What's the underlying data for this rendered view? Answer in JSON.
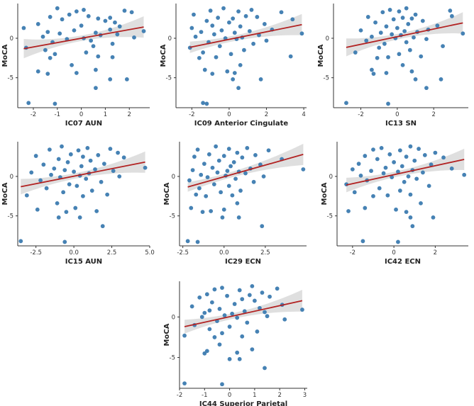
{
  "chart_data": [
    {
      "type": "scatter",
      "title": "",
      "xlabel": "IC07 AUN",
      "ylabel": "MoCA",
      "xticks": [
        -2,
        -1,
        0,
        1,
        2
      ],
      "xticklabels": [
        "-2",
        "-1",
        "0",
        "1",
        "2"
      ],
      "yticks": [
        0,
        -5
      ],
      "yticklabels": [
        "0",
        "-5"
      ],
      "xlim": [
        -2.65,
        2.85
      ],
      "ylim": [
        -8.8,
        4.4
      ],
      "fit": {
        "slope": 0.55,
        "intercept": 0.0
      },
      "x": [
        -1.0,
        0.1,
        1.8,
        -0.2,
        2.1,
        -0.5,
        0.3,
        -1.3,
        1.2,
        0.7,
        -0.8,
        1.0,
        1.4,
        -1.8,
        0.0,
        1.6,
        -2.4,
        1.2,
        -0.3,
        2.6,
        -1.4,
        0.6,
        -0.9,
        1.5,
        0.8,
        -1.6,
        2.2,
        0.1,
        -0.6,
        0.4,
        -1.2,
        1.3,
        0.5,
        -2.3,
        -1.5,
        0.2,
        -1.1,
        0.7,
        1.3,
        -1.3,
        -0.4,
        0.6,
        -1.8,
        -0.2,
        -1.4,
        1.2,
        1.9,
        0.6,
        -2.2,
        -1.1
      ]
    },
    {
      "type": "scatter",
      "title": "",
      "xlabel": "IC09 Anterior Cingulate",
      "ylabel": "MoCA",
      "xticks": [
        -2,
        0,
        2,
        4
      ],
      "xticklabels": [
        "-2",
        "0",
        "2",
        "4"
      ],
      "yticks": [
        0,
        -5
      ],
      "yticklabels": [
        "0",
        "-5"
      ],
      "xlim": [
        -2.85,
        4.15
      ],
      "ylim": [
        -8.8,
        4.4
      ],
      "fit": {
        "slope": 0.48,
        "intercept": -0.14
      },
      "x": [
        -0.3,
        1.2,
        -1.0,
        0.5,
        2.8,
        -1.9,
        0.9,
        1.5,
        -0.6,
        0.2,
        3.4,
        -1.2,
        0.0,
        1.9,
        -0.9,
        0.6,
        -2.0,
        2.3,
        -0.4,
        1.1,
        -1.5,
        0.3,
        3.9,
        -0.8,
        1.6,
        -1.8,
        0.7,
        -0.2,
        0.4,
        2.0,
        -1.1,
        1.3,
        -0.5,
        -2.1,
        0.8,
        -1.4,
        0.1,
        3.3,
        -0.7,
        -1.6,
        0.6,
        -1.3,
        -0.1,
        0.3,
        -0.9,
        1.7,
        0.2,
        0.5,
        -1.4,
        -1.2
      ]
    },
    {
      "type": "scatter",
      "title": "",
      "xlabel": "IC13 SN",
      "ylabel": "MoCA",
      "xticks": [
        -2,
        0,
        2
      ],
      "xticklabels": [
        "-2",
        "0",
        "2"
      ],
      "yticks": [
        0,
        -5
      ],
      "yticklabels": [
        "0",
        "-5"
      ],
      "xlim": [
        -3.5,
        3.9
      ],
      "ylim": [
        -8.8,
        4.4
      ],
      "fit": {
        "slope": 0.485,
        "intercept": 0.2
      },
      "x": [
        0.5,
        -0.4,
        2.9,
        0.1,
        -0.8,
        1.0,
        3.0,
        -1.6,
        0.3,
        0.8,
        -0.2,
        1.4,
        -1.2,
        0.6,
        2.2,
        -0.6,
        0.0,
        1.7,
        -2.0,
        0.4,
        1.1,
        -0.9,
        3.6,
        -0.3,
        0.2,
        -1.4,
        0.9,
        -0.1,
        1.6,
        -1.7,
        0.5,
        -0.7,
        2.5,
        -1.0,
        0.7,
        -2.3,
        0.1,
        1.3,
        -0.5,
        -1.1,
        0.3,
        -1.4,
        0.8,
        -0.6,
        -1.3,
        1.0,
        2.4,
        1.6,
        -2.8,
        -0.5
      ]
    },
    {
      "type": "scatter",
      "title": "",
      "xlabel": "IC15 AUN",
      "ylabel": "MoCA",
      "xticks": [
        -2.5,
        0,
        2.5,
        5
      ],
      "xticklabels": [
        "-2.5",
        "0.0",
        "2.5",
        "5.0"
      ],
      "yticks": [
        0,
        -5
      ],
      "yticklabels": [
        "0",
        "-5"
      ],
      "xlim": [
        -3.7,
        5.0
      ],
      "ylim": [
        -8.8,
        4.4
      ],
      "fit": {
        "slope": 0.38,
        "intercept": 0.03
      },
      "x": [
        -0.8,
        0.9,
        2.4,
        -1.6,
        0.3,
        2.9,
        -0.2,
        1.6,
        -2.5,
        0.6,
        3.3,
        -1.0,
        1.1,
        -0.4,
        2.0,
        -2.0,
        0.5,
        4.7,
        -1.3,
        1.4,
        -0.6,
        2.6,
        0.0,
        -2.8,
        1.0,
        -1.5,
        0.4,
        3.0,
        -0.9,
        0.8,
        -2.2,
        1.8,
        -0.3,
        0.2,
        -1.8,
        1.2,
        -0.7,
        2.2,
        -3.1,
        0.6,
        -1.1,
        0.1,
        -2.4,
        1.5,
        -0.5,
        0.4,
        -1.0,
        1.9,
        -3.5,
        -0.6
      ]
    },
    {
      "type": "scatter",
      "title": "",
      "xlabel": "IC29 ECN",
      "ylabel": "MoCA",
      "xticks": [
        -2.5,
        0,
        2.5
      ],
      "xticklabels": [
        "-2.5",
        "0.0",
        "2.5"
      ],
      "yticks": [
        0,
        -5
      ],
      "yticklabels": [
        "0",
        "-5"
      ],
      "xlim": [
        -2.7,
        5.0
      ],
      "ylim": [
        -8.8,
        4.4
      ],
      "fit": {
        "slope": 0.59,
        "intercept": -0.04
      },
      "x": [
        -0.5,
        1.4,
        0.3,
        -1.6,
        2.7,
        0.8,
        -0.9,
        1.9,
        0.0,
        -1.8,
        1.1,
        3.5,
        -0.3,
        0.6,
        -1.2,
        2.2,
        0.4,
        -0.7,
        1.6,
        4.8,
        -1.9,
        0.2,
        0.9,
        -0.4,
        1.3,
        -1.4,
        0.1,
        2.4,
        -1.0,
        0.7,
        -2.1,
        1.8,
        -0.6,
        0.3,
        -1.5,
        1.0,
        -0.2,
        -1.7,
        0.5,
        -1.1,
        0.8,
        -2.0,
        0.0,
        -0.8,
        -1.3,
        0.9,
        -0.1,
        2.3,
        -2.2,
        -1.6
      ]
    },
    {
      "type": "scatter",
      "title": "",
      "xlabel": "IC42 ECN",
      "ylabel": "MoCA",
      "xticks": [
        -2,
        0,
        2
      ],
      "xticklabels": [
        "-2",
        "0",
        "2"
      ],
      "yticks": [
        0,
        -5
      ],
      "yticklabels": [
        "0",
        "-5"
      ],
      "xlim": [
        -2.75,
        3.6
      ],
      "ylim": [
        -8.8,
        4.4
      ],
      "fit": {
        "slope": 0.57,
        "intercept": 0.22
      },
      "x": [
        0.8,
        -0.6,
        1.2,
        -1.0,
        0.3,
        2.0,
        -0.2,
        1.5,
        -1.4,
        0.6,
        2.4,
        -0.8,
        1.0,
        0.0,
        -1.7,
        1.8,
        0.4,
        -0.4,
        2.8,
        -2.0,
        0.9,
        -1.1,
        0.2,
        1.4,
        -0.5,
        3.4,
        -1.6,
        0.7,
        -0.1,
        1.1,
        -1.3,
        0.5,
        -2.3,
        1.7,
        -0.7,
        0.3,
        -1.9,
        0.8,
        -0.3,
        -1.0,
        1.3,
        -1.4,
        0.1,
        -2.2,
        0.6,
        0.8,
        1.9,
        0.9,
        -1.5,
        0.2
      ]
    },
    {
      "type": "scatter",
      "title": "",
      "xlabel": "IC44 Superior Parietal",
      "ylabel": "MoCA",
      "xticks": [
        -2,
        -1,
        0,
        1,
        2,
        3
      ],
      "xticklabels": [
        "-2",
        "-1",
        "0",
        "1",
        "2",
        "3"
      ],
      "yticks": [
        0,
        -5
      ],
      "yticklabels": [
        "0",
        "-5"
      ],
      "xlim": [
        -2.0,
        3.1
      ],
      "ylim": [
        -8.8,
        4.4
      ],
      "fit": {
        "slope": 0.68,
        "intercept": 0.03
      },
      "x": [
        0.9,
        -0.3,
        1.9,
        -0.6,
        0.4,
        1.3,
        -0.9,
        0.8,
        -0.1,
        1.6,
        -1.2,
        0.5,
        1.0,
        -0.7,
        0.2,
        2.1,
        -1.5,
        1.2,
        -0.4,
        2.9,
        -0.8,
        0.6,
        1.4,
        -1.0,
        0.1,
        -0.2,
        1.5,
        -1.1,
        0.3,
        2.2,
        -0.5,
        0.7,
        -1.4,
        0.0,
        -0.8,
        1.1,
        -0.3,
        -1.8,
        0.5,
        -0.6,
        -0.4,
        0.9,
        -0.9,
        0.3,
        -1.0,
        0.0,
        0.4,
        1.4,
        -1.8,
        -0.3
      ]
    }
  ],
  "shared_y": [
    3.8,
    3.6,
    3.5,
    3.4,
    3.3,
    3.0,
    2.8,
    2.7,
    2.6,
    2.5,
    2.4,
    2.2,
    2.0,
    1.8,
    1.6,
    1.5,
    1.3,
    1.1,
    1.0,
    0.9,
    0.8,
    0.7,
    0.6,
    0.5,
    0.4,
    0.2,
    0.1,
    0,
    -0.1,
    -0.3,
    -0.5,
    -0.7,
    -1.0,
    -1.2,
    -1.5,
    -1.8,
    -2.0,
    -2.3,
    -2.4,
    -2.5,
    -3.4,
    -4.0,
    -4.2,
    -4.4,
    -4.5,
    -5.2,
    -5.2,
    -6.3,
    -8.2,
    -8.3
  ],
  "colors": {
    "points": "#4682b4",
    "fit": "#b22222",
    "ci": "#d9d9d9",
    "axis": "#333333"
  }
}
